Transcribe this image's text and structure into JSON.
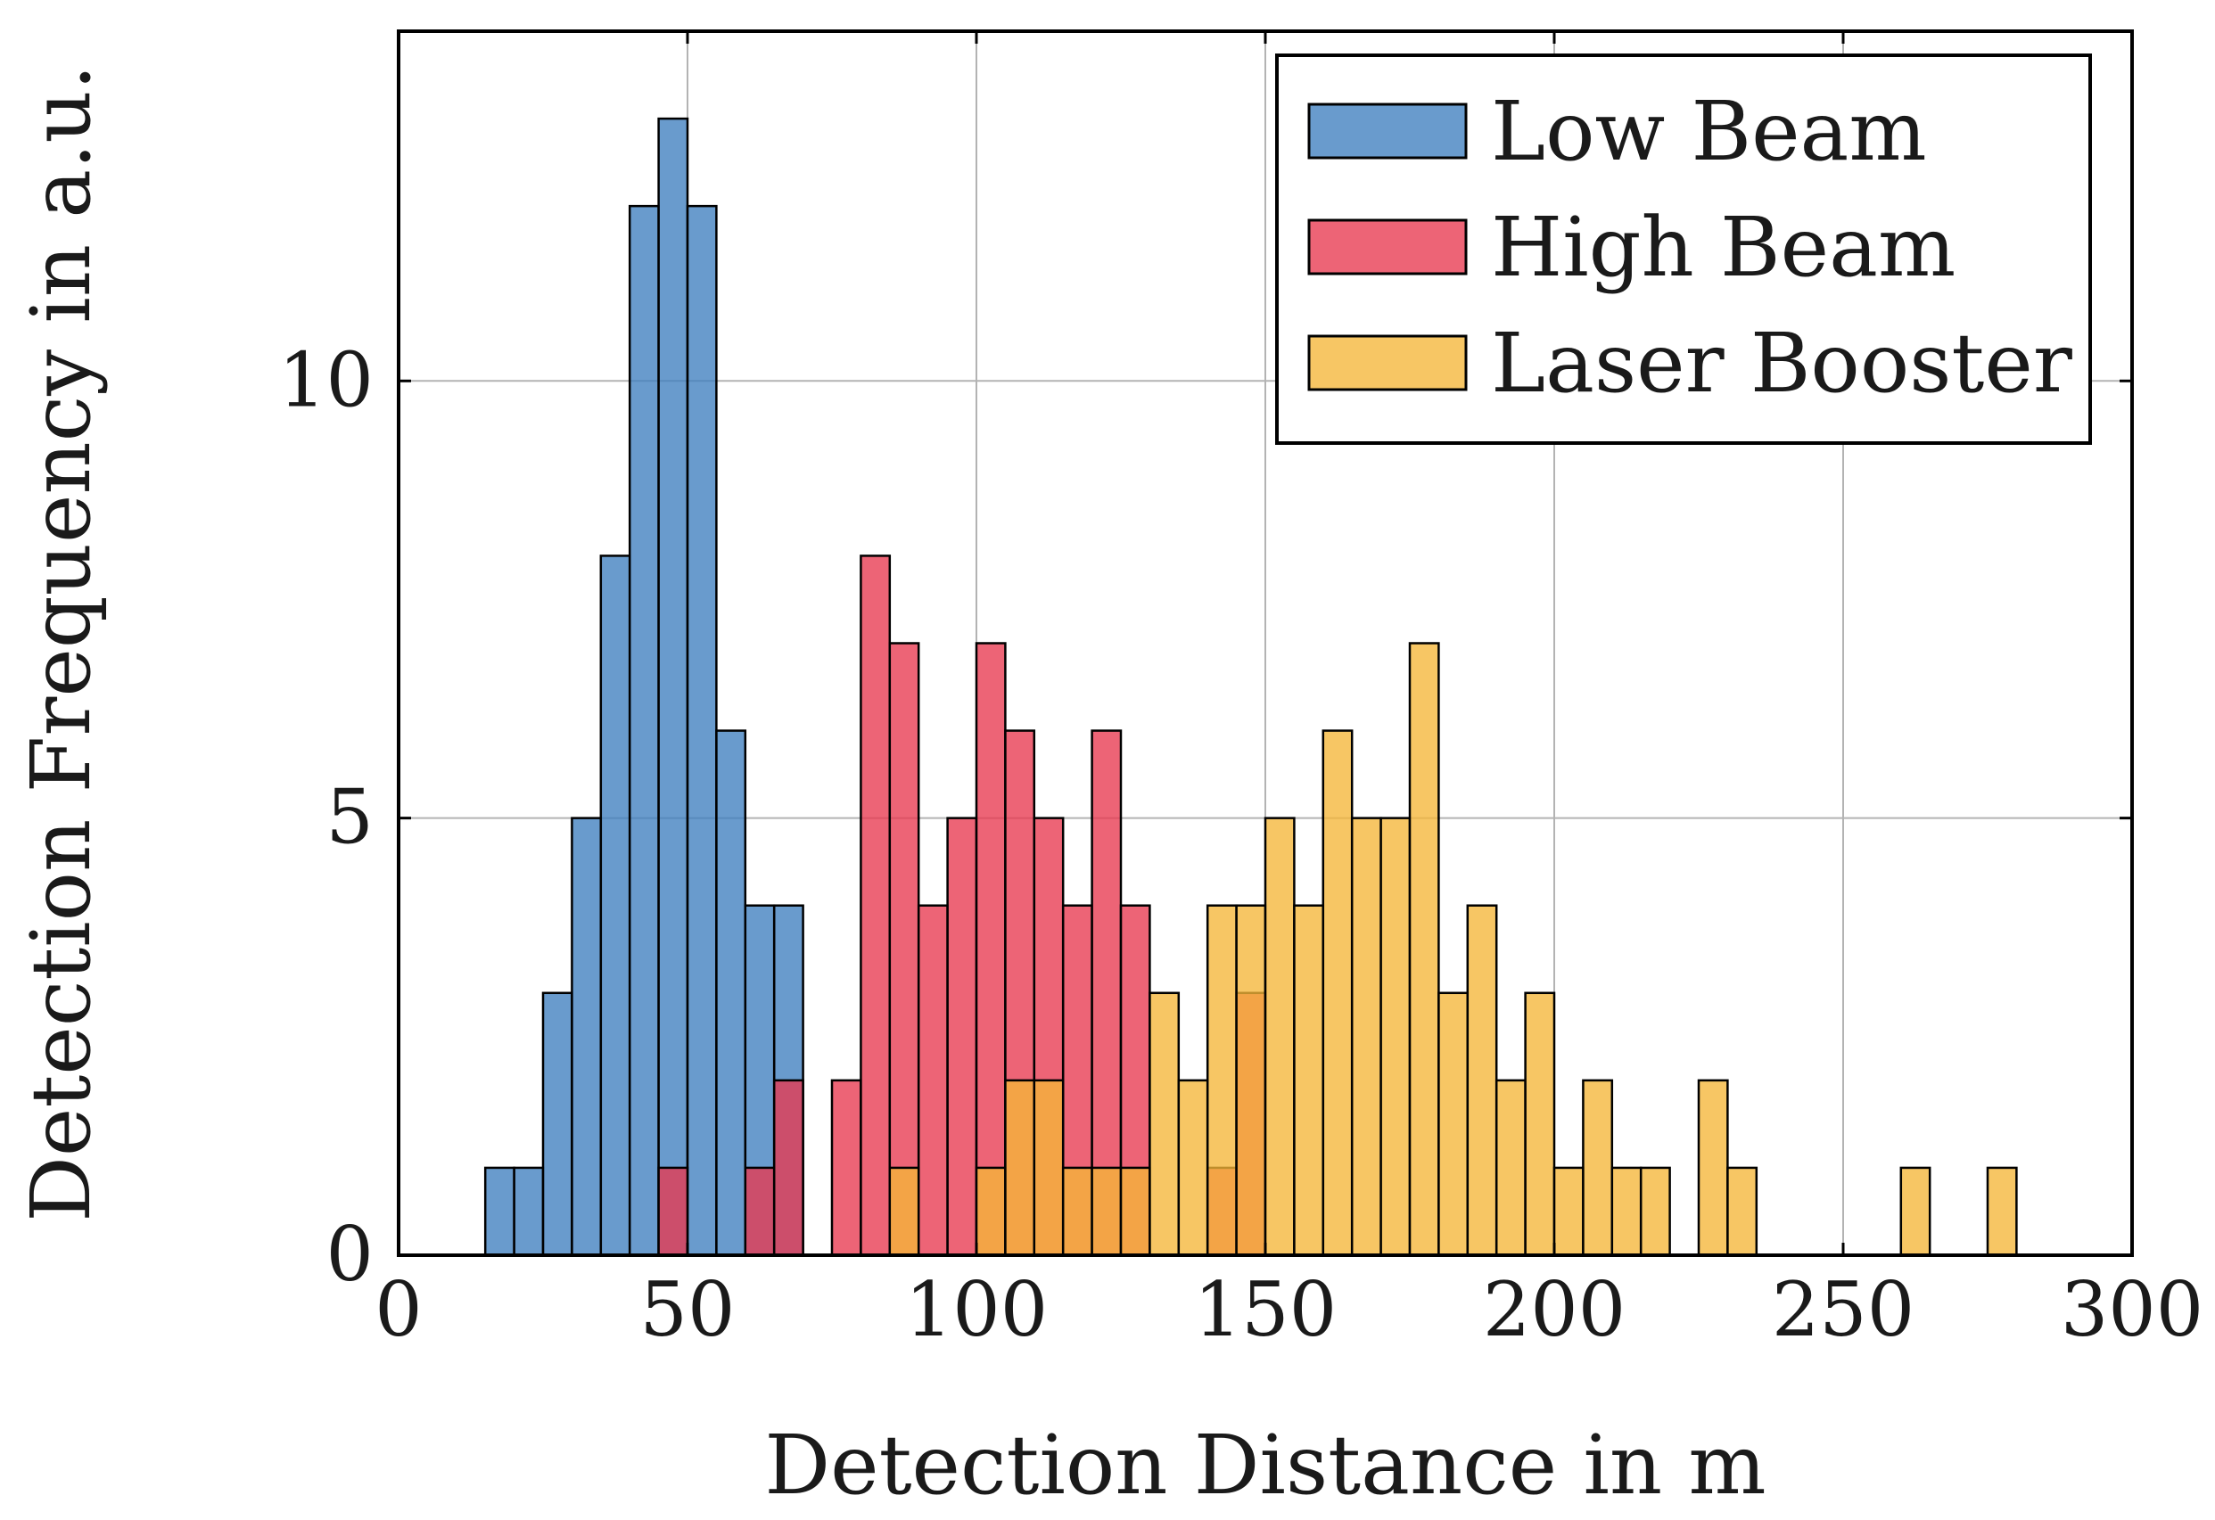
{
  "chart_data": {
    "type": "histogram",
    "title": "",
    "xlabel": "Detection Distance in m",
    "ylabel": "Detection Frequency in a.u.",
    "xlim": [
      0,
      300
    ],
    "ylim": [
      0,
      14
    ],
    "xticks": [
      0,
      50,
      100,
      150,
      200,
      250,
      300
    ],
    "yticks": [
      0,
      5,
      10
    ],
    "grid": true,
    "bin_width": 5,
    "legend_position": "top-right",
    "series": [
      {
        "name": "Low Beam",
        "color": "#3F7FBF",
        "bins": [
          {
            "x": 15,
            "count": 1
          },
          {
            "x": 20,
            "count": 1
          },
          {
            "x": 25,
            "count": 3
          },
          {
            "x": 30,
            "count": 5
          },
          {
            "x": 35,
            "count": 8
          },
          {
            "x": 40,
            "count": 12
          },
          {
            "x": 45,
            "count": 13
          },
          {
            "x": 50,
            "count": 12
          },
          {
            "x": 55,
            "count": 6
          },
          {
            "x": 60,
            "count": 4
          },
          {
            "x": 65,
            "count": 4
          }
        ]
      },
      {
        "name": "High Beam",
        "color": "#E8384F",
        "bins": [
          {
            "x": 45,
            "count": 1
          },
          {
            "x": 60,
            "count": 1
          },
          {
            "x": 65,
            "count": 2
          },
          {
            "x": 75,
            "count": 2
          },
          {
            "x": 80,
            "count": 8
          },
          {
            "x": 85,
            "count": 7
          },
          {
            "x": 90,
            "count": 4
          },
          {
            "x": 95,
            "count": 5
          },
          {
            "x": 100,
            "count": 7
          },
          {
            "x": 105,
            "count": 6
          },
          {
            "x": 110,
            "count": 5
          },
          {
            "x": 115,
            "count": 4
          },
          {
            "x": 120,
            "count": 6
          },
          {
            "x": 125,
            "count": 4
          },
          {
            "x": 140,
            "count": 1
          },
          {
            "x": 145,
            "count": 3
          }
        ]
      },
      {
        "name": "Laser Booster",
        "color": "#F5B638",
        "bins": [
          {
            "x": 85,
            "count": 1
          },
          {
            "x": 100,
            "count": 1
          },
          {
            "x": 105,
            "count": 2
          },
          {
            "x": 110,
            "count": 2
          },
          {
            "x": 115,
            "count": 1
          },
          {
            "x": 120,
            "count": 1
          },
          {
            "x": 125,
            "count": 1
          },
          {
            "x": 130,
            "count": 3
          },
          {
            "x": 135,
            "count": 2
          },
          {
            "x": 140,
            "count": 4
          },
          {
            "x": 145,
            "count": 4
          },
          {
            "x": 150,
            "count": 5
          },
          {
            "x": 155,
            "count": 4
          },
          {
            "x": 160,
            "count": 6
          },
          {
            "x": 165,
            "count": 5
          },
          {
            "x": 170,
            "count": 5
          },
          {
            "x": 175,
            "count": 7
          },
          {
            "x": 180,
            "count": 3
          },
          {
            "x": 185,
            "count": 4
          },
          {
            "x": 190,
            "count": 2
          },
          {
            "x": 195,
            "count": 3
          },
          {
            "x": 200,
            "count": 1
          },
          {
            "x": 205,
            "count": 2
          },
          {
            "x": 210,
            "count": 1
          },
          {
            "x": 215,
            "count": 1
          },
          {
            "x": 225,
            "count": 2
          },
          {
            "x": 230,
            "count": 1
          },
          {
            "x": 260,
            "count": 1
          },
          {
            "x": 275,
            "count": 1
          }
        ]
      }
    ]
  }
}
